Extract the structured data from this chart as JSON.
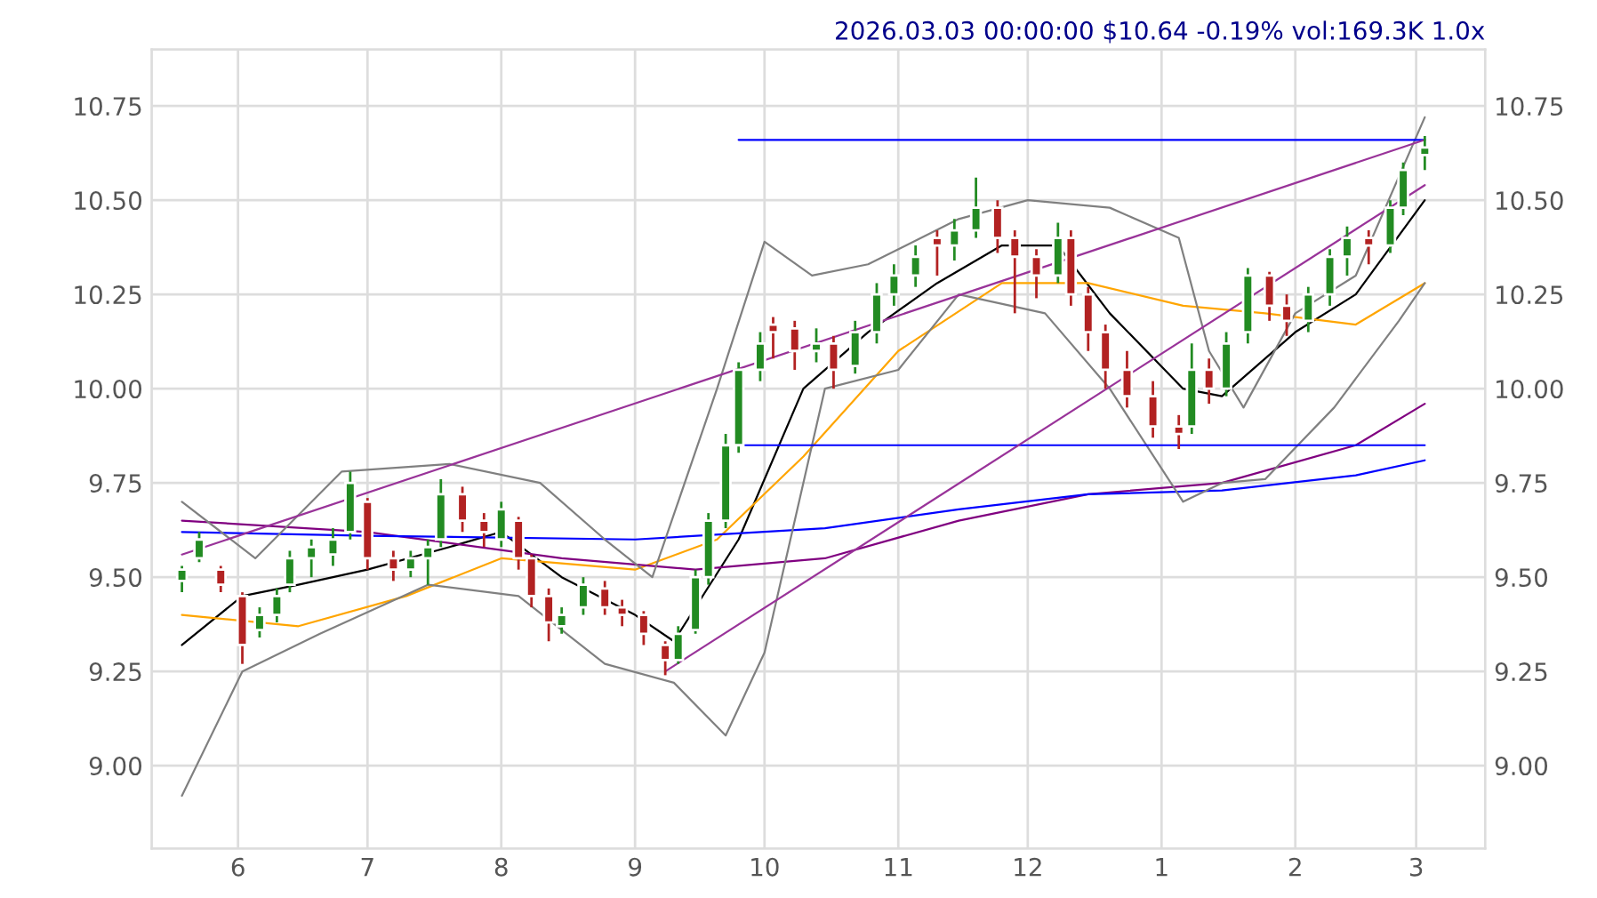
{
  "chart_data": {
    "type": "candlestick",
    "title": "2026.03.03 00:00:00 $10.64 -0.19% vol:169.3K 1.0x",
    "x": [
      "2025-05-19",
      "2025-05-23",
      "2025-05-28",
      "2025-06-02",
      "2025-06-06",
      "2025-06-10",
      "2025-06-13",
      "2025-06-18",
      "2025-06-23",
      "2025-06-27",
      "2025-07-01",
      "2025-07-07",
      "2025-07-11",
      "2025-07-15",
      "2025-07-18",
      "2025-07-23",
      "2025-07-28",
      "2025-08-01",
      "2025-08-05",
      "2025-08-08",
      "2025-08-12",
      "2025-08-15",
      "2025-08-20",
      "2025-08-25",
      "2025-08-29",
      "2025-09-03",
      "2025-09-08",
      "2025-09-11",
      "2025-09-15",
      "2025-09-18",
      "2025-09-22",
      "2025-09-25",
      "2025-09-30",
      "2025-10-03",
      "2025-10-08",
      "2025-10-13",
      "2025-10-17",
      "2025-10-22",
      "2025-10-27",
      "2025-10-31",
      "2025-11-05",
      "2025-11-10",
      "2025-11-14",
      "2025-11-19",
      "2025-11-24",
      "2025-11-28",
      "2025-12-03",
      "2025-12-08",
      "2025-12-11",
      "2025-12-15",
      "2025-12-19",
      "2025-12-24",
      "2025-12-30",
      "2026-01-05",
      "2026-01-08",
      "2026-01-12",
      "2026-01-16",
      "2026-01-21",
      "2026-01-26",
      "2026-01-30",
      "2026-02-04",
      "2026-02-09",
      "2026-02-13",
      "2026-02-18",
      "2026-02-23",
      "2026-02-26",
      "2026-03-03"
    ],
    "ohlc": [
      [
        9.49,
        9.53,
        9.46,
        9.52
      ],
      [
        9.55,
        9.62,
        9.54,
        9.6
      ],
      [
        9.52,
        9.53,
        9.46,
        9.48
      ],
      [
        9.45,
        9.46,
        9.27,
        9.32
      ],
      [
        9.36,
        9.42,
        9.34,
        9.4
      ],
      [
        9.4,
        9.47,
        9.38,
        9.45
      ],
      [
        9.48,
        9.57,
        9.46,
        9.55
      ],
      [
        9.55,
        9.6,
        9.5,
        9.58
      ],
      [
        9.56,
        9.63,
        9.53,
        9.6
      ],
      [
        9.62,
        9.78,
        9.6,
        9.75
      ],
      [
        9.7,
        9.71,
        9.52,
        9.55
      ],
      [
        9.55,
        9.57,
        9.49,
        9.52
      ],
      [
        9.52,
        9.57,
        9.5,
        9.55
      ],
      [
        9.55,
        9.6,
        9.48,
        9.58
      ],
      [
        9.6,
        9.76,
        9.58,
        9.72
      ],
      [
        9.72,
        9.74,
        9.62,
        9.65
      ],
      [
        9.65,
        9.67,
        9.58,
        9.62
      ],
      [
        9.6,
        9.7,
        9.58,
        9.68
      ],
      [
        9.65,
        9.66,
        9.52,
        9.55
      ],
      [
        9.55,
        9.56,
        9.42,
        9.45
      ],
      [
        9.45,
        9.47,
        9.33,
        9.38
      ],
      [
        9.37,
        9.42,
        9.35,
        9.4
      ],
      [
        9.42,
        9.5,
        9.4,
        9.48
      ],
      [
        9.47,
        9.49,
        9.4,
        9.42
      ],
      [
        9.42,
        9.44,
        9.37,
        9.4
      ],
      [
        9.4,
        9.41,
        9.32,
        9.35
      ],
      [
        9.32,
        9.33,
        9.24,
        9.28
      ],
      [
        9.28,
        9.37,
        9.27,
        9.35
      ],
      [
        9.36,
        9.52,
        9.35,
        9.5
      ],
      [
        9.5,
        9.67,
        9.48,
        9.65
      ],
      [
        9.65,
        9.88,
        9.63,
        9.85
      ],
      [
        9.85,
        10.07,
        9.83,
        10.05
      ],
      [
        10.05,
        10.15,
        10.02,
        10.12
      ],
      [
        10.17,
        10.19,
        10.08,
        10.15
      ],
      [
        10.16,
        10.18,
        10.05,
        10.1
      ],
      [
        10.1,
        10.16,
        10.07,
        10.12
      ],
      [
        10.12,
        10.14,
        10.0,
        10.05
      ],
      [
        10.06,
        10.18,
        10.04,
        10.15
      ],
      [
        10.15,
        10.28,
        10.12,
        10.25
      ],
      [
        10.25,
        10.33,
        10.22,
        10.3
      ],
      [
        10.3,
        10.38,
        10.27,
        10.35
      ],
      [
        10.4,
        10.42,
        10.3,
        10.38
      ],
      [
        10.38,
        10.45,
        10.34,
        10.42
      ],
      [
        10.42,
        10.56,
        10.4,
        10.48
      ],
      [
        10.48,
        10.5,
        10.36,
        10.4
      ],
      [
        10.4,
        10.42,
        10.2,
        10.35
      ],
      [
        10.35,
        10.37,
        10.24,
        10.3
      ],
      [
        10.3,
        10.44,
        10.28,
        10.4
      ],
      [
        10.4,
        10.42,
        10.22,
        10.25
      ],
      [
        10.25,
        10.27,
        10.1,
        10.15
      ],
      [
        10.15,
        10.17,
        10.0,
        10.05
      ],
      [
        10.05,
        10.1,
        9.95,
        9.98
      ],
      [
        9.98,
        10.02,
        9.87,
        9.9
      ],
      [
        9.9,
        9.93,
        9.84,
        9.88
      ],
      [
        9.9,
        10.12,
        9.88,
        10.05
      ],
      [
        10.05,
        10.08,
        9.96,
        10.0
      ],
      [
        10.0,
        10.15,
        9.98,
        10.12
      ],
      [
        10.15,
        10.32,
        10.12,
        10.3
      ],
      [
        10.3,
        10.31,
        10.18,
        10.22
      ],
      [
        10.22,
        10.25,
        10.14,
        10.18
      ],
      [
        10.18,
        10.27,
        10.15,
        10.25
      ],
      [
        10.25,
        10.37,
        10.22,
        10.35
      ],
      [
        10.35,
        10.43,
        10.3,
        10.4
      ],
      [
        10.4,
        10.42,
        10.33,
        10.38
      ],
      [
        10.38,
        10.5,
        10.36,
        10.48
      ],
      [
        10.48,
        10.6,
        10.46,
        10.58
      ],
      [
        10.62,
        10.67,
        10.58,
        10.64
      ]
    ],
    "series": [
      {
        "type": "line",
        "color": "#000000",
        "x": [
          "2025-05-19",
          "2025-06-02",
          "2025-06-15",
          "2025-07-01",
          "2025-07-20",
          "2025-08-01",
          "2025-08-15",
          "2025-09-01",
          "2025-09-10",
          "2025-09-25",
          "2025-10-10",
          "2025-10-25",
          "2025-11-10",
          "2025-11-25",
          "2025-12-08",
          "2025-12-20",
          "2026-01-06",
          "2026-01-15",
          "2026-02-01",
          "2026-02-15",
          "2026-03-03"
        ],
        "values": [
          9.32,
          9.45,
          9.48,
          9.52,
          9.58,
          9.62,
          9.5,
          9.4,
          9.33,
          9.6,
          10.0,
          10.15,
          10.28,
          10.38,
          10.38,
          10.2,
          10.0,
          9.98,
          10.15,
          10.25,
          10.5
        ]
      },
      {
        "type": "line",
        "color": "#ffa500",
        "x": [
          "2025-05-19",
          "2025-06-15",
          "2025-07-10",
          "2025-08-01",
          "2025-09-01",
          "2025-09-20",
          "2025-10-10",
          "2025-11-01",
          "2025-11-25",
          "2025-12-15",
          "2026-01-06",
          "2026-01-25",
          "2026-02-15",
          "2026-03-03"
        ],
        "values": [
          9.4,
          9.37,
          9.45,
          9.55,
          9.52,
          9.6,
          9.82,
          10.1,
          10.28,
          10.28,
          10.22,
          10.2,
          10.17,
          10.28
        ]
      },
      {
        "type": "line",
        "color": "#800080",
        "x": [
          "2025-05-19",
          "2025-07-01",
          "2025-08-15",
          "2025-09-15",
          "2025-10-15",
          "2025-11-15",
          "2025-12-15",
          "2026-01-15",
          "2026-02-15",
          "2026-03-03"
        ],
        "values": [
          9.65,
          9.62,
          9.55,
          9.52,
          9.55,
          9.65,
          9.72,
          9.75,
          9.85,
          9.96
        ]
      },
      {
        "type": "line",
        "color": "#0000ff",
        "x": [
          "2025-05-19",
          "2025-07-01",
          "2025-09-01",
          "2025-10-15",
          "2025-11-15",
          "2025-12-15",
          "2026-01-15",
          "2026-02-15",
          "2026-03-03"
        ],
        "values": [
          9.62,
          9.61,
          9.6,
          9.63,
          9.68,
          9.72,
          9.73,
          9.77,
          9.81
        ]
      },
      {
        "type": "line",
        "color": "#808080",
        "x": [
          "2025-05-19",
          "2025-06-05",
          "2025-06-25",
          "2025-07-20",
          "2025-08-10",
          "2025-08-25",
          "2025-09-05",
          "2025-09-20",
          "2025-10-01",
          "2025-10-12",
          "2025-10-25",
          "2025-11-15",
          "2025-12-01",
          "2025-12-20",
          "2026-01-05",
          "2026-01-12",
          "2026-01-20",
          "2026-02-01",
          "2026-02-15",
          "2026-03-03"
        ],
        "values": [
          9.7,
          9.55,
          9.78,
          9.8,
          9.75,
          9.6,
          9.5,
          10.0,
          10.39,
          10.3,
          10.33,
          10.45,
          10.5,
          10.48,
          10.4,
          10.1,
          9.95,
          10.2,
          10.3,
          10.72
        ]
      },
      {
        "type": "line",
        "color": "#808080",
        "x": [
          "2025-05-19",
          "2025-06-02",
          "2025-06-20",
          "2025-07-15",
          "2025-08-05",
          "2025-08-25",
          "2025-09-10",
          "2025-09-22",
          "2025-10-01",
          "2025-10-15",
          "2025-11-01",
          "2025-11-15",
          "2025-12-05",
          "2025-12-20",
          "2026-01-06",
          "2026-01-15",
          "2026-01-25",
          "2026-02-10",
          "2026-02-25",
          "2026-03-03"
        ],
        "values": [
          8.92,
          9.25,
          9.35,
          9.48,
          9.45,
          9.27,
          9.22,
          9.08,
          9.3,
          10.0,
          10.05,
          10.25,
          10.2,
          10.0,
          9.7,
          9.75,
          9.76,
          9.95,
          10.18,
          10.28
        ]
      },
      {
        "type": "line",
        "color": "#0000ff",
        "x": [
          "2025-09-25",
          "2026-03-03"
        ],
        "values": [
          10.66,
          10.66
        ]
      },
      {
        "type": "line",
        "color": "#0000ff",
        "x": [
          "2025-09-25",
          "2026-03-03"
        ],
        "values": [
          9.85,
          9.85
        ]
      },
      {
        "type": "line",
        "color": "#993399",
        "x": [
          "2025-05-19",
          "2026-03-03"
        ],
        "values": [
          9.56,
          10.66
        ]
      },
      {
        "type": "line",
        "color": "#993399",
        "x": [
          "2025-09-08",
          "2026-03-03"
        ],
        "values": [
          9.25,
          10.54
        ]
      }
    ],
    "xlim": [
      "2025-05-12",
      "2026-03-17"
    ],
    "xticks": [
      {
        "value": "2025-06-01",
        "label": "6"
      },
      {
        "value": "2025-07-01",
        "label": "7"
      },
      {
        "value": "2025-08-01",
        "label": "8"
      },
      {
        "value": "2025-09-01",
        "label": "9"
      },
      {
        "value": "2025-10-01",
        "label": "10"
      },
      {
        "value": "2025-11-01",
        "label": "11"
      },
      {
        "value": "2025-12-01",
        "label": "12"
      },
      {
        "value": "2026-01-01",
        "label": "1"
      },
      {
        "value": "2026-02-01",
        "label": "2"
      },
      {
        "value": "2026-03-01",
        "label": "3"
      }
    ],
    "ylim": [
      8.78,
      10.9
    ],
    "yticks": [
      {
        "value": 9.0,
        "label": "9.00"
      },
      {
        "value": 9.25,
        "label": "9.25"
      },
      {
        "value": 9.5,
        "label": "9.50"
      },
      {
        "value": 9.75,
        "label": "9.75"
      },
      {
        "value": 10.0,
        "label": "10.00"
      },
      {
        "value": 10.25,
        "label": "10.25"
      },
      {
        "value": 10.5,
        "label": "10.50"
      },
      {
        "value": 10.75,
        "label": "10.75"
      }
    ],
    "y2lim": [
      8.78,
      10.9
    ],
    "y2ticks": [
      {
        "value": 9.0,
        "label": "9.00"
      },
      {
        "value": 9.25,
        "label": "9.25"
      },
      {
        "value": 9.5,
        "label": "9.50"
      },
      {
        "value": 9.75,
        "label": "9.75"
      },
      {
        "value": 10.0,
        "label": "10.00"
      },
      {
        "value": 10.25,
        "label": "10.25"
      },
      {
        "value": 10.5,
        "label": "10.50"
      },
      {
        "value": 10.75,
        "label": "10.75"
      }
    ],
    "grid": true,
    "legend": false
  }
}
